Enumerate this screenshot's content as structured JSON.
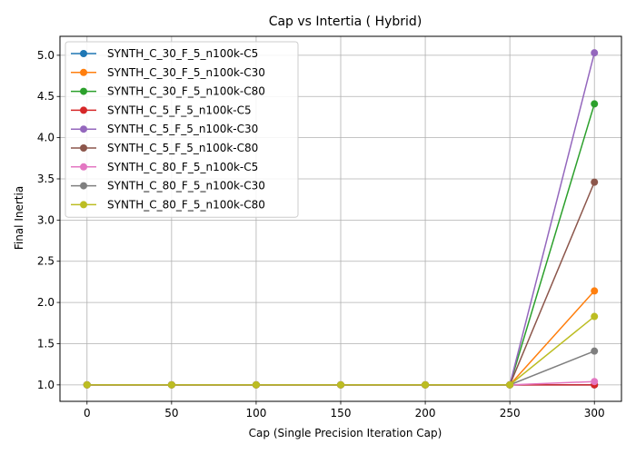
{
  "chart_data": {
    "type": "line",
    "title": "Cap vs Intertia ( Hybrid)",
    "xlabel": "Cap (Single Precision Iteration Cap)",
    "ylabel": "Final Inertia",
    "xlim": [
      -16,
      316
    ],
    "ylim": [
      0.8,
      5.23
    ],
    "xticks": [
      0,
      50,
      100,
      150,
      200,
      250,
      300
    ],
    "yticks": [
      1.0,
      1.5,
      2.0,
      2.5,
      3.0,
      3.5,
      4.0,
      4.5,
      5.0
    ],
    "grid": true,
    "legend_position": "upper-left",
    "x": [
      0,
      50,
      100,
      150,
      200,
      250,
      300
    ],
    "series": [
      {
        "name": "SYNTH_C_30_F_5_n100k-C5",
        "color": "#1f77b4",
        "values": [
          1,
          1,
          1,
          1,
          1,
          1,
          1.0
        ]
      },
      {
        "name": "SYNTH_C_30_F_5_n100k-C30",
        "color": "#ff7f0e",
        "values": [
          1,
          1,
          1,
          1,
          1,
          1,
          2.14
        ]
      },
      {
        "name": "SYNTH_C_30_F_5_n100k-C80",
        "color": "#2ca02c",
        "values": [
          1,
          1,
          1,
          1,
          1,
          1,
          4.41
        ]
      },
      {
        "name": "SYNTH_C_5_F_5_n100k-C5",
        "color": "#d62728",
        "values": [
          1,
          1,
          1,
          1,
          1,
          1,
          1.0
        ]
      },
      {
        "name": "SYNTH_C_5_F_5_n100k-C30",
        "color": "#9467bd",
        "values": [
          1,
          1,
          1,
          1,
          1,
          1,
          5.03
        ]
      },
      {
        "name": "SYNTH_C_5_F_5_n100k-C80",
        "color": "#8c564b",
        "values": [
          1,
          1,
          1,
          1,
          1,
          1,
          3.46
        ]
      },
      {
        "name": "SYNTH_C_80_F_5_n100k-C5",
        "color": "#e377c2",
        "values": [
          1,
          1,
          1,
          1,
          1,
          1,
          1.04
        ]
      },
      {
        "name": "SYNTH_C_80_F_5_n100k-C30",
        "color": "#7f7f7f",
        "values": [
          1,
          1,
          1,
          1,
          1,
          1,
          1.41
        ]
      },
      {
        "name": "SYNTH_C_80_F_5_n100k-C80",
        "color": "#bcbd22",
        "values": [
          1,
          1,
          1,
          1,
          1,
          1,
          1.83
        ]
      }
    ]
  }
}
